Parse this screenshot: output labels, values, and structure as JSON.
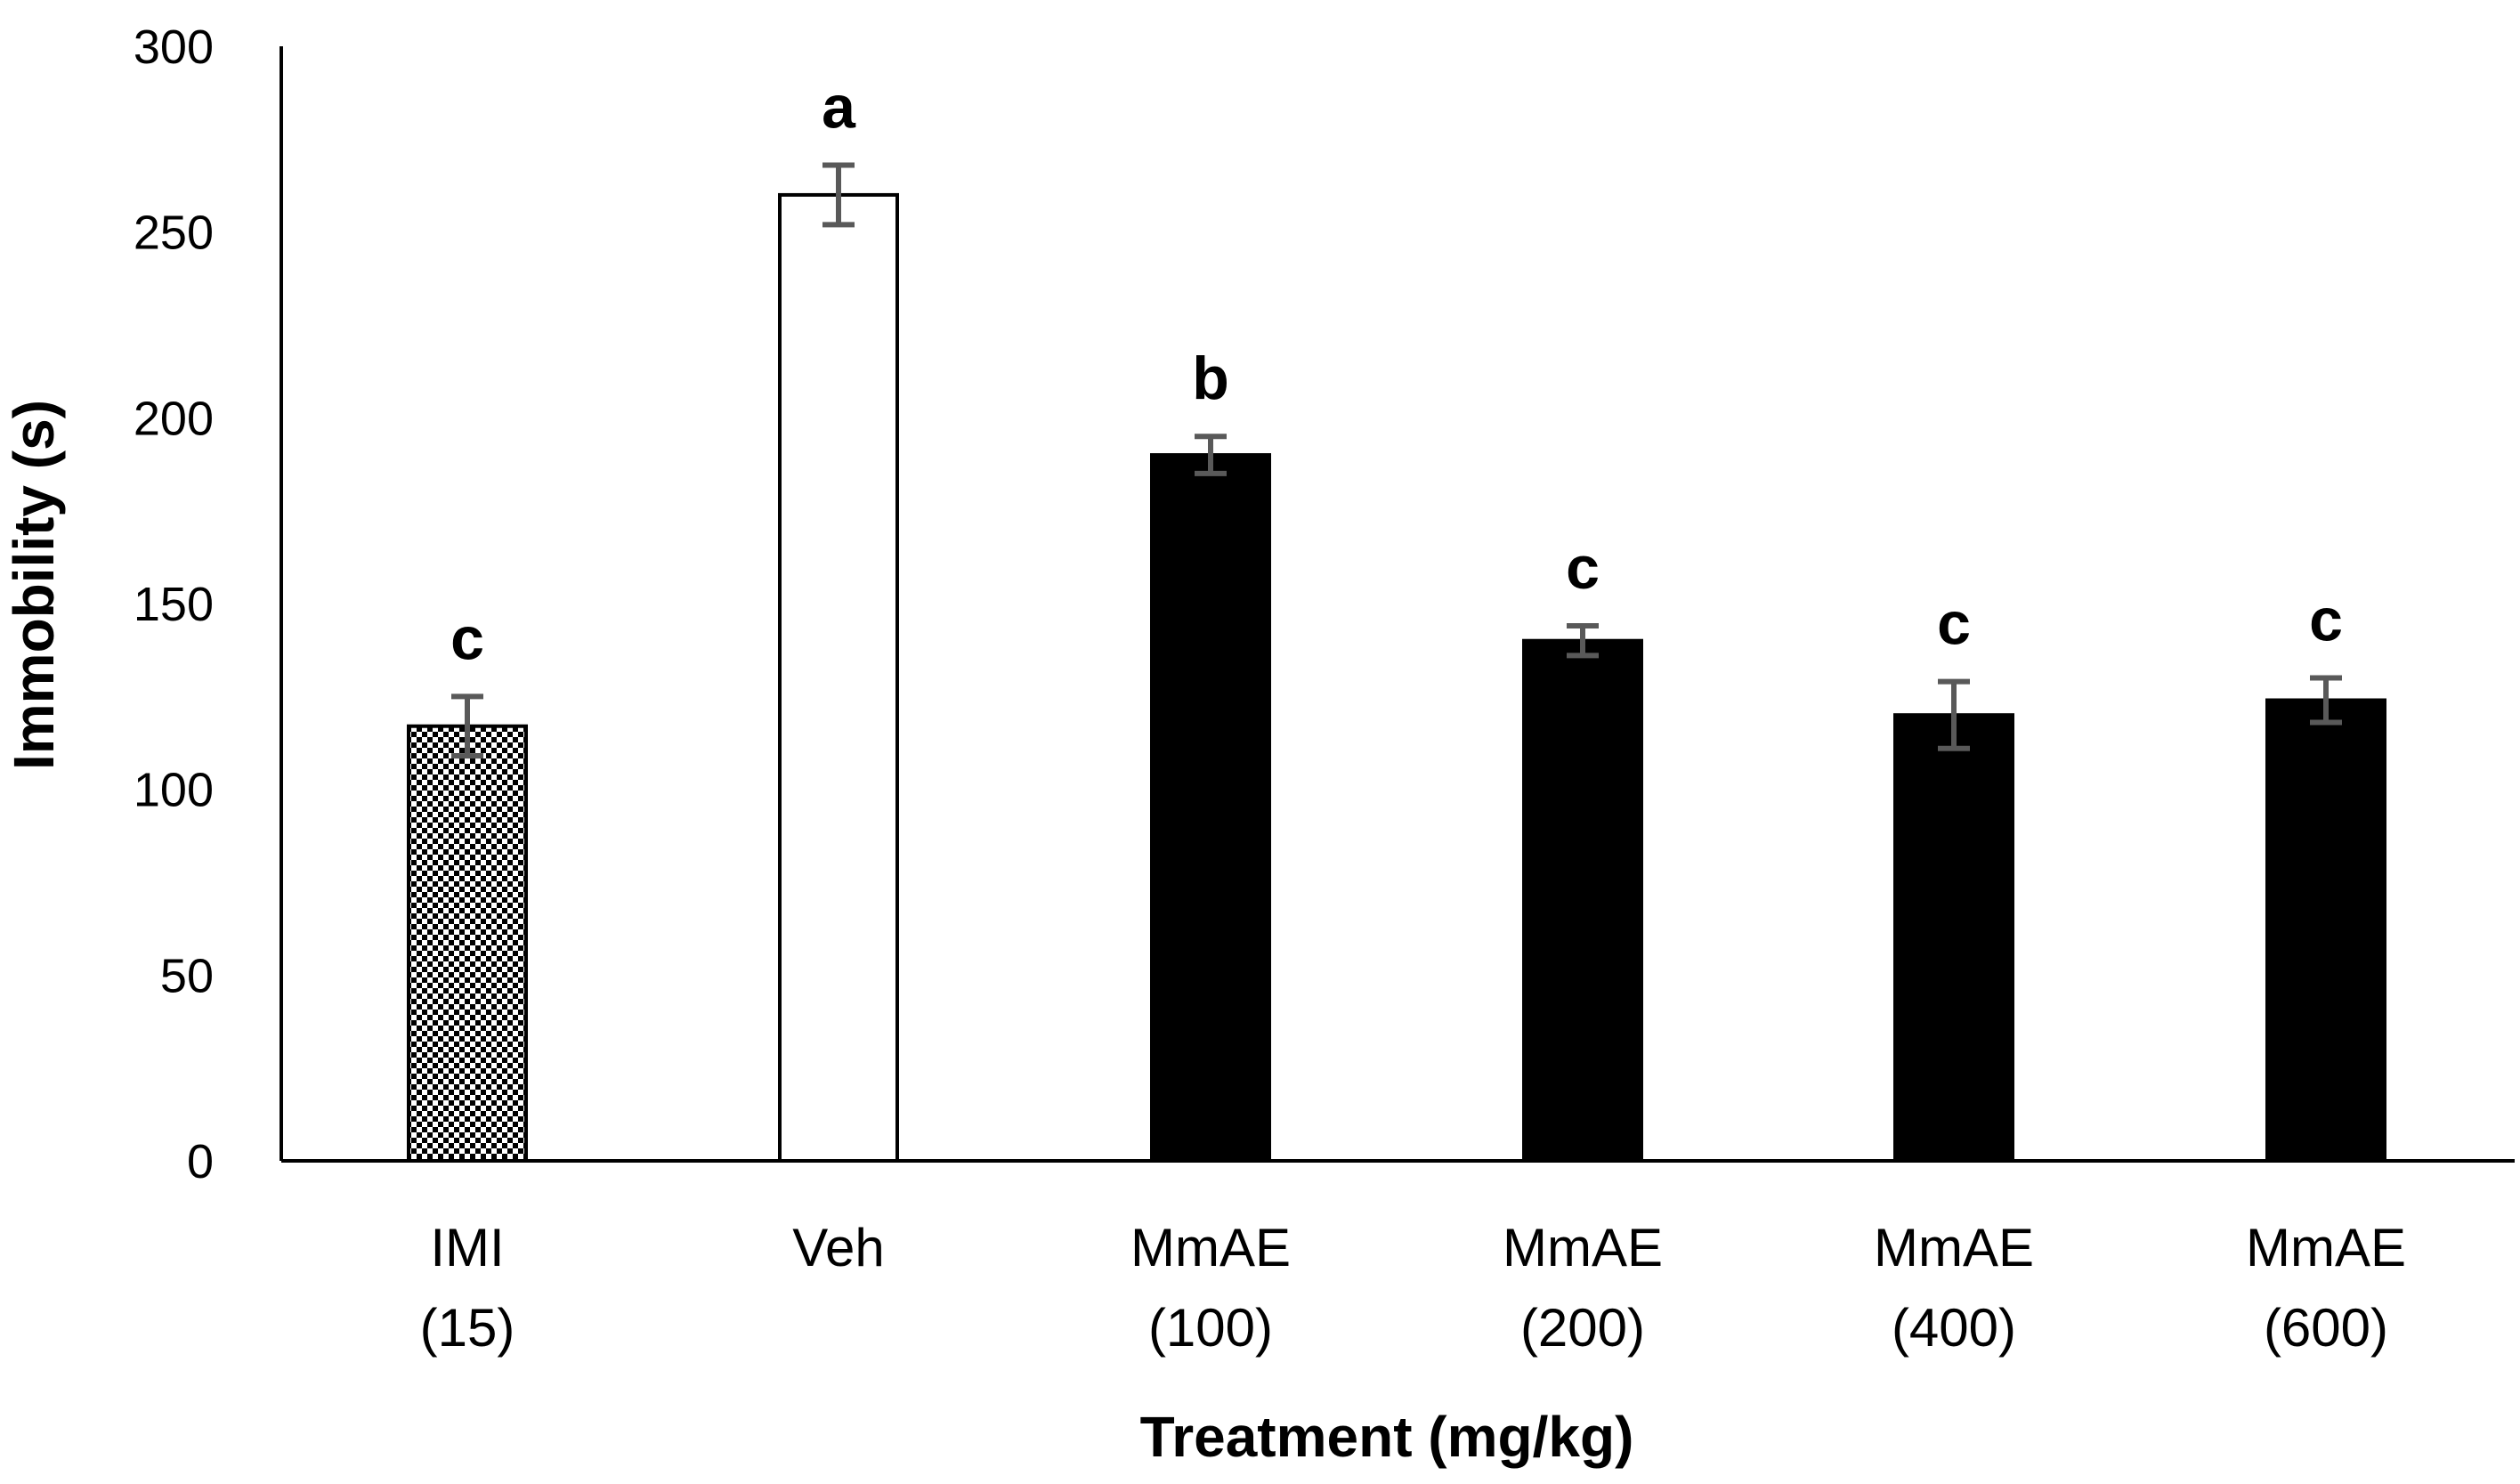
{
  "chart_data": {
    "type": "bar",
    "title": "",
    "xlabel": "Treatment (mg/kg)",
    "ylabel": "Immobility (s)",
    "ylim": [
      0,
      300
    ],
    "yticks": [
      "0",
      "50",
      "100",
      "150",
      "200",
      "250",
      "300"
    ],
    "grid": false,
    "legend": "none",
    "categories": [
      {
        "line1": "IMI",
        "line2": "(15)"
      },
      {
        "line1": "Veh",
        "line2": ""
      },
      {
        "line1": "MmAE",
        "line2": "(100)"
      },
      {
        "line1": "MmAE",
        "line2": "(200)"
      },
      {
        "line1": "MmAE",
        "line2": "(400)"
      },
      {
        "line1": "MmAE",
        "line2": "(600)"
      }
    ],
    "values": [
      117,
      260,
      190,
      140,
      120,
      124
    ],
    "errors": [
      8,
      8,
      5,
      4,
      9,
      6
    ],
    "significance_letters": [
      "c",
      "a",
      "b",
      "c",
      "c",
      "c"
    ],
    "fills": [
      "checkered",
      "white",
      "black",
      "black",
      "black",
      "black"
    ],
    "colors": {
      "bar_black": "#000000",
      "bar_white": "#ffffff",
      "error_bar": "#595959",
      "axis": "#000000"
    }
  }
}
